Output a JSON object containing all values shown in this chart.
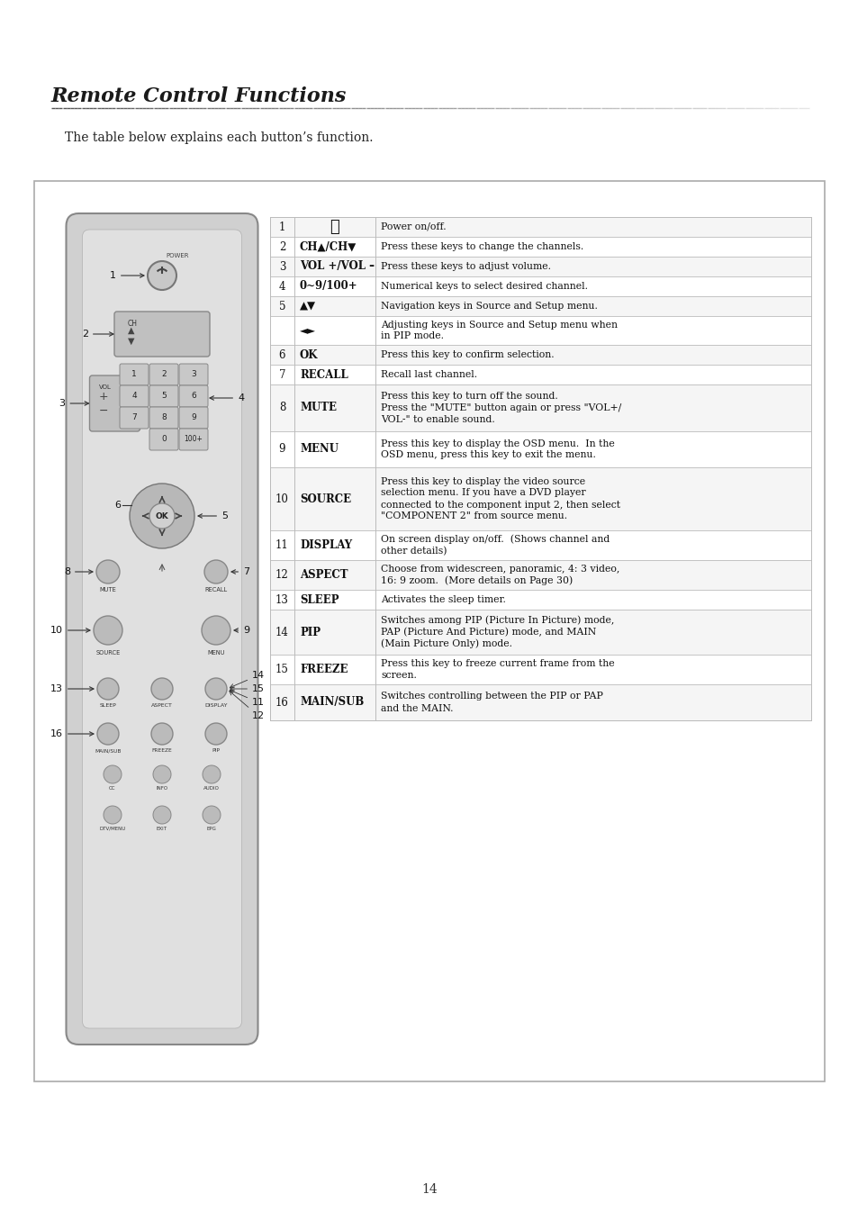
{
  "title": "Remote Control Functions",
  "subtitle": "The table below explains each button’s function.",
  "page_number": "14",
  "bg_color": "#ffffff",
  "title_color": "#1a1a1a",
  "text_color": "#222222",
  "table_rows": [
    {
      "num": "1",
      "button": "⏻",
      "description": "Power on/off.",
      "bold_button": false,
      "is_power": true
    },
    {
      "num": "2",
      "button": "CH▲/CH▼",
      "description": "Press these keys to change the channels.",
      "bold_button": true
    },
    {
      "num": "3",
      "button": "VOL +/VOL –",
      "description": "Press these keys to adjust volume.",
      "bold_button": true
    },
    {
      "num": "4",
      "button": "0~9/100+",
      "description": "Numerical keys to select desired channel.",
      "bold_button": true
    },
    {
      "num": "5",
      "button": "▲▼",
      "description": "Navigation keys in Source and Setup menu.",
      "bold_button": true
    },
    {
      "num": "",
      "button": "◄►",
      "description": "Adjusting keys in Source and Setup menu when\nin PIP mode.",
      "bold_button": true
    },
    {
      "num": "6",
      "button": "OK",
      "description": "Press this key to confirm selection.",
      "bold_button": true
    },
    {
      "num": "7",
      "button": "RECALL",
      "description": "Recall last channel.",
      "bold_button": true
    },
    {
      "num": "8",
      "button": "MUTE",
      "description": "Press this key to turn off the sound.\nPress the \"MUTE\" button again or press \"VOL+/\nVOL-\" to enable sound.",
      "bold_button": true
    },
    {
      "num": "9",
      "button": "MENU",
      "description": "Press this key to display the OSD menu.  In the\nOSD menu, press this key to exit the menu.",
      "bold_button": true
    },
    {
      "num": "10",
      "button": "SOURCE",
      "description": "Press this key to display the video source\nselection menu. If you have a DVD player\nconnected to the component input 2, then select\n\"COMPONENT 2\" from source menu.",
      "bold_button": true
    },
    {
      "num": "11",
      "button": "DISPLAY",
      "description": "On screen display on/off.  (Shows channel and\nother details)",
      "bold_button": true
    },
    {
      "num": "12",
      "button": "ASPECT",
      "description": "Choose from widescreen, panoramic, 4: 3 video,\n16: 9 zoom.  (More details on Page 30)",
      "bold_button": true
    },
    {
      "num": "13",
      "button": "SLEEP",
      "description": "Activates the sleep timer.",
      "bold_button": true
    },
    {
      "num": "14",
      "button": "PIP",
      "description": "Switches among PIP (Picture In Picture) mode,\nPAP (Picture And Picture) mode, and MAIN\n(Main Picture Only) mode.",
      "bold_button": true
    },
    {
      "num": "15",
      "button": "FREEZE",
      "description": "Press this key to freeze current frame from the\nscreen.",
      "bold_button": true
    },
    {
      "num": "16",
      "button": "MAIN/SUB",
      "description": "Switches controlling between the PIP or PAP\nand the MAIN.",
      "bold_button": true
    }
  ]
}
